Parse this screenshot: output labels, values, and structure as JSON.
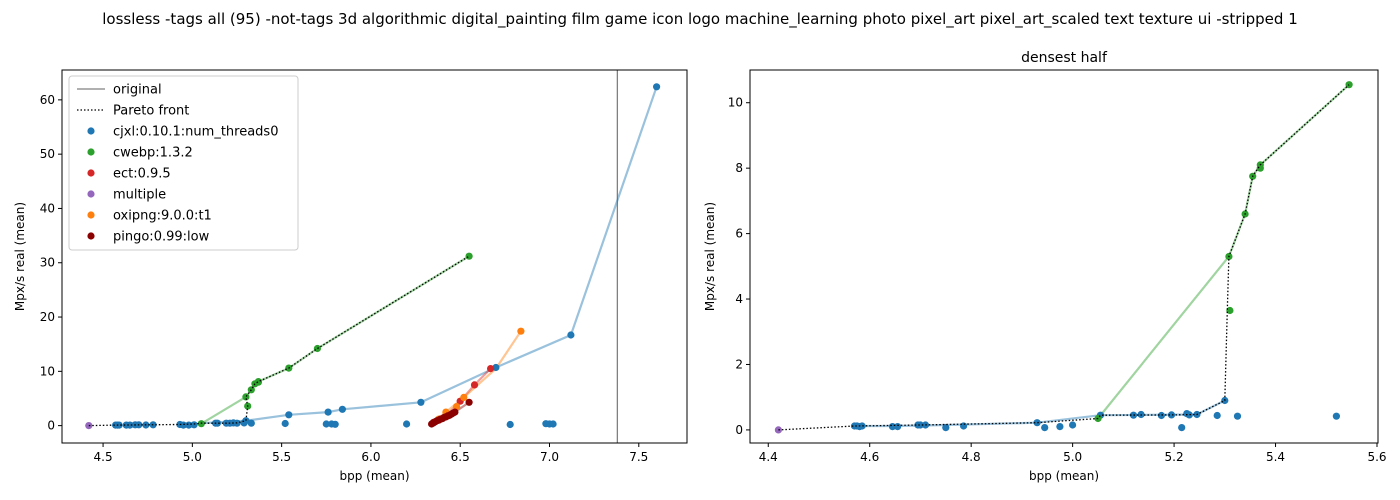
{
  "suptitle": "lossless -tags all (95) -not-tags 3d algorithmic digital_painting film game icon logo machine_learning photo pixel_art pixel_art_scaled text texture ui -stripped 1",
  "colors": {
    "cjxl": "#1f77b4",
    "cwebp": "#2ca02c",
    "ect": "#d62728",
    "multiple": "#9467bd",
    "oxipng": "#ff7f0e",
    "pingo": "#8b0000",
    "original": "#808080",
    "pareto": "#000000"
  },
  "chart_data": [
    {
      "type": "scatter",
      "title": "",
      "xlabel": "bpp (mean)",
      "ylabel": "Mpx/s real (mean)",
      "xlim": [
        4.27,
        7.77
      ],
      "ylim": [
        -3.2,
        65.5
      ],
      "xticks": [
        "4.5",
        "5.0",
        "5.5",
        "6.0",
        "6.5",
        "7.0",
        "7.5"
      ],
      "yticks": [
        "0",
        "10",
        "20",
        "30",
        "40",
        "50",
        "60"
      ],
      "grid": false,
      "legend_position": "top-left",
      "legend": {
        "original": "original",
        "pareto": "Pareto front",
        "series": [
          "cjxl:0.10.1:num_threads0",
          "cwebp:1.3.2",
          "ect:0.9.5",
          "multiple",
          "oxipng:9.0.0:t1",
          "pingo:0.99:low"
        ]
      },
      "original_x": 7.38,
      "series": [
        {
          "name": "cjxl:0.10.1:num_threads0",
          "color_key": "cjxl",
          "points": [
            [
              4.57,
              0.1
            ],
            [
              4.58,
              0.1
            ],
            [
              4.59,
              0.1
            ],
            [
              4.63,
              0.1
            ],
            [
              4.65,
              0.1
            ],
            [
              4.68,
              0.15
            ],
            [
              4.7,
              0.15
            ],
            [
              4.74,
              0.12
            ],
            [
              4.78,
              0.15
            ],
            [
              4.93,
              0.2
            ],
            [
              4.95,
              0.1
            ],
            [
              4.98,
              0.1
            ],
            [
              5.01,
              0.15
            ],
            [
              5.13,
              0.45
            ],
            [
              5.14,
              0.45
            ],
            [
              5.19,
              0.45
            ],
            [
              5.21,
              0.45
            ],
            [
              5.23,
              0.5
            ],
            [
              5.25,
              0.45
            ],
            [
              5.29,
              0.5
            ],
            [
              5.3,
              0.9
            ],
            [
              5.33,
              0.45
            ],
            [
              5.52,
              0.4
            ],
            [
              5.54,
              2.0
            ],
            [
              5.75,
              0.3
            ],
            [
              5.76,
              2.5
            ],
            [
              5.78,
              0.3
            ],
            [
              5.8,
              0.25
            ],
            [
              5.84,
              3.0
            ],
            [
              6.2,
              0.3
            ],
            [
              6.28,
              4.3
            ],
            [
              6.7,
              10.7
            ],
            [
              6.78,
              0.2
            ],
            [
              6.98,
              0.35
            ],
            [
              7.0,
              0.3
            ],
            [
              7.02,
              0.3
            ],
            [
              7.12,
              16.7
            ],
            [
              7.6,
              62.4
            ]
          ],
          "line": [
            [
              5.05,
              0.45
            ],
            [
              5.3,
              0.9
            ],
            [
              5.54,
              2.0
            ],
            [
              5.76,
              2.5
            ],
            [
              5.84,
              3.0
            ],
            [
              6.28,
              4.3
            ],
            [
              6.7,
              10.7
            ],
            [
              7.12,
              16.7
            ],
            [
              7.6,
              62.4
            ]
          ]
        },
        {
          "name": "cwebp:1.3.2",
          "color_key": "cwebp",
          "points": [
            [
              5.05,
              0.35
            ],
            [
              5.3,
              5.3
            ],
            [
              5.31,
              3.6
            ],
            [
              5.33,
              6.6
            ],
            [
              5.35,
              7.7
            ],
            [
              5.37,
              8.0
            ],
            [
              5.37,
              8.1
            ],
            [
              5.54,
              10.6
            ],
            [
              5.7,
              14.2
            ],
            [
              6.55,
              31.2
            ]
          ],
          "line": [
            [
              5.05,
              0.35
            ],
            [
              5.3,
              5.3
            ],
            [
              5.33,
              6.6
            ],
            [
              5.35,
              7.7
            ],
            [
              5.37,
              8.1
            ],
            [
              5.54,
              10.6
            ],
            [
              5.7,
              14.2
            ],
            [
              6.55,
              31.2
            ]
          ]
        },
        {
          "name": "ect:0.9.5",
          "color_key": "ect",
          "points": [
            [
              6.35,
              0.6
            ],
            [
              6.42,
              1.8
            ],
            [
              6.5,
              4.5
            ],
            [
              6.58,
              7.5
            ],
            [
              6.67,
              10.5
            ]
          ],
          "line": [
            [
              6.35,
              0.6
            ],
            [
              6.42,
              1.8
            ],
            [
              6.5,
              4.5
            ],
            [
              6.58,
              7.5
            ],
            [
              6.67,
              10.5
            ]
          ]
        },
        {
          "name": "multiple",
          "color_key": "multiple",
          "points": [
            [
              4.42,
              0.0
            ]
          ],
          "line": []
        },
        {
          "name": "oxipng:9.0.0:t1",
          "color_key": "oxipng",
          "points": [
            [
              6.38,
              1.2
            ],
            [
              6.42,
              2.5
            ],
            [
              6.48,
              3.5
            ],
            [
              6.52,
              5.2
            ],
            [
              6.84,
              17.4
            ]
          ],
          "line": [
            [
              6.34,
              0.4
            ],
            [
              6.42,
              2.5
            ],
            [
              6.52,
              5.2
            ],
            [
              6.7,
              10.5
            ],
            [
              6.84,
              17.4
            ]
          ]
        },
        {
          "name": "pingo:0.99:low",
          "color_key": "pingo",
          "points": [
            [
              6.34,
              0.3
            ],
            [
              6.35,
              0.5
            ],
            [
              6.36,
              0.7
            ],
            [
              6.37,
              0.9
            ],
            [
              6.38,
              1.0
            ],
            [
              6.39,
              1.2
            ],
            [
              6.4,
              1.3
            ],
            [
              6.41,
              1.5
            ],
            [
              6.42,
              1.6
            ],
            [
              6.43,
              1.8
            ],
            [
              6.44,
              1.9
            ],
            [
              6.45,
              2.1
            ],
            [
              6.46,
              2.3
            ],
            [
              6.47,
              2.5
            ],
            [
              6.55,
              4.3
            ]
          ],
          "line": [
            [
              6.34,
              0.3
            ],
            [
              6.38,
              1.0
            ],
            [
              6.42,
              1.6
            ],
            [
              6.47,
              2.5
            ],
            [
              6.55,
              4.3
            ]
          ]
        }
      ],
      "pareto": [
        [
          4.42,
          0.0
        ],
        [
          4.57,
          0.1
        ],
        [
          4.65,
          0.12
        ],
        [
          4.75,
          0.15
        ],
        [
          4.93,
          0.2
        ],
        [
          5.01,
          0.3
        ],
        [
          5.05,
          0.45
        ],
        [
          5.12,
          0.45
        ],
        [
          5.2,
          0.45
        ],
        [
          5.25,
          0.5
        ],
        [
          5.3,
          0.9
        ],
        [
          5.31,
          3.6
        ],
        [
          5.3,
          5.3
        ],
        [
          5.33,
          6.6
        ],
        [
          5.35,
          7.7
        ],
        [
          5.37,
          8.1
        ],
        [
          5.54,
          10.6
        ],
        [
          5.7,
          14.2
        ],
        [
          6.55,
          31.2
        ]
      ]
    },
    {
      "type": "scatter",
      "title": "densest half",
      "xlabel": "bpp (mean)",
      "ylabel": "Mpx/s real (mean)",
      "xlim": [
        4.364,
        5.602
      ],
      "ylim": [
        -0.4,
        11.0
      ],
      "xticks": [
        "4.4",
        "4.6",
        "4.8",
        "5.0",
        "5.2",
        "5.4",
        "5.6"
      ],
      "yticks": [
        "0",
        "2",
        "4",
        "6",
        "8",
        "10"
      ],
      "grid": false,
      "series": [
        {
          "name": "cjxl:0.10.1:num_threads0",
          "color_key": "cjxl",
          "points": [
            [
              4.57,
              0.12
            ],
            [
              4.575,
              0.12
            ],
            [
              4.58,
              0.1
            ],
            [
              4.585,
              0.12
            ],
            [
              4.645,
              0.1
            ],
            [
              4.655,
              0.1
            ],
            [
              4.695,
              0.15
            ],
            [
              4.7,
              0.15
            ],
            [
              4.71,
              0.15
            ],
            [
              4.75,
              0.07
            ],
            [
              4.785,
              0.12
            ],
            [
              4.93,
              0.22
            ],
            [
              4.945,
              0.07
            ],
            [
              4.975,
              0.1
            ],
            [
              5.0,
              0.15
            ],
            [
              5.055,
              0.45
            ],
            [
              5.12,
              0.45
            ],
            [
              5.135,
              0.47
            ],
            [
              5.175,
              0.44
            ],
            [
              5.195,
              0.46
            ],
            [
              5.215,
              0.07
            ],
            [
              5.225,
              0.5
            ],
            [
              5.23,
              0.46
            ],
            [
              5.245,
              0.47
            ],
            [
              5.285,
              0.44
            ],
            [
              5.3,
              0.9
            ],
            [
              5.325,
              0.42
            ],
            [
              5.52,
              0.42
            ]
          ],
          "line": [
            [
              4.57,
              0.12
            ],
            [
              4.65,
              0.12
            ],
            [
              4.75,
              0.15
            ],
            [
              4.93,
              0.22
            ],
            [
              5.055,
              0.45
            ],
            [
              5.15,
              0.46
            ],
            [
              5.245,
              0.47
            ],
            [
              5.3,
              0.9
            ]
          ]
        },
        {
          "name": "cwebp:1.3.2",
          "color_key": "cwebp",
          "points": [
            [
              5.05,
              0.35
            ],
            [
              5.308,
              5.3
            ],
            [
              5.31,
              3.65
            ],
            [
              5.34,
              6.6
            ],
            [
              5.355,
              7.75
            ],
            [
              5.37,
              8.0
            ],
            [
              5.37,
              8.1
            ],
            [
              5.545,
              10.55
            ]
          ],
          "line": [
            [
              5.05,
              0.35
            ],
            [
              5.308,
              5.3
            ],
            [
              5.34,
              6.6
            ],
            [
              5.355,
              7.75
            ],
            [
              5.37,
              8.1
            ],
            [
              5.545,
              10.55
            ]
          ]
        },
        {
          "name": "multiple",
          "color_key": "multiple",
          "points": [
            [
              4.42,
              0.0
            ]
          ],
          "line": []
        }
      ],
      "pareto": [
        [
          4.42,
          0.0
        ],
        [
          4.57,
          0.12
        ],
        [
          4.7,
          0.15
        ],
        [
          4.93,
          0.22
        ],
        [
          5.05,
          0.35
        ],
        [
          5.055,
          0.45
        ],
        [
          5.2,
          0.46
        ],
        [
          5.245,
          0.47
        ],
        [
          5.3,
          0.9
        ],
        [
          5.305,
          3.65
        ],
        [
          5.308,
          5.3
        ],
        [
          5.34,
          6.6
        ],
        [
          5.355,
          7.75
        ],
        [
          5.37,
          8.1
        ],
        [
          5.545,
          10.55
        ]
      ]
    }
  ]
}
